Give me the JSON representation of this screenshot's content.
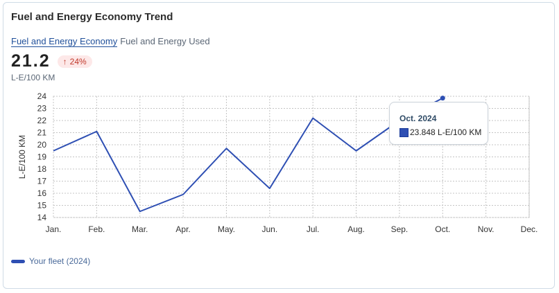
{
  "card": {
    "title": "Fuel and Energy Economy Trend",
    "tabs": [
      {
        "label": "Fuel and Energy Economy",
        "active": true
      },
      {
        "label": "Fuel and Energy Used",
        "active": false
      }
    ],
    "kpi_value": "21.2",
    "change_label": "24%",
    "change_icon": "arrow-up-icon",
    "unit": "L-E/100 KM"
  },
  "tooltip": {
    "title": "Oct. 2024",
    "value_text": "23.848 L-E/100 KM"
  },
  "legend": {
    "label": "Your fleet (2024)"
  },
  "colors": {
    "series": "#2e4fb3",
    "badge_bg": "#fde8e8",
    "badge_text": "#c0392b",
    "link": "#1f4f9a"
  },
  "chart_data": {
    "type": "line",
    "title": "",
    "xlabel": "",
    "ylabel": "L-E/100 KM",
    "categories": [
      "Jan.",
      "Feb.",
      "Mar.",
      "Apr.",
      "May.",
      "Jun.",
      "Jul.",
      "Aug.",
      "Sep.",
      "Oct.",
      "Nov.",
      "Dec."
    ],
    "ylim": [
      14,
      24
    ],
    "yticks": [
      14,
      15,
      16,
      17,
      18,
      19,
      20,
      21,
      22,
      23,
      24
    ],
    "grid": true,
    "series": [
      {
        "name": "Your fleet (2024)",
        "values": [
          19.5,
          21.1,
          14.5,
          15.9,
          19.7,
          16.4,
          22.2,
          19.5,
          22.0,
          23.848,
          null,
          null
        ]
      }
    ]
  }
}
